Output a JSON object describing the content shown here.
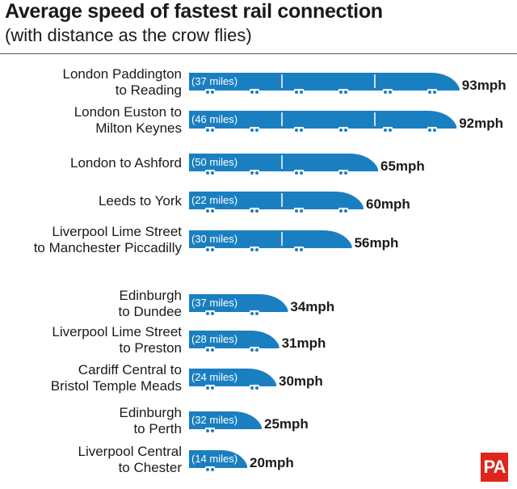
{
  "header": {
    "title": "Average speed of fastest rail connection",
    "subtitle": "(with distance as the crow flies)"
  },
  "logo_text": "PA",
  "colors": {
    "bar": "#1a7fc1",
    "text": "#1a1a1a",
    "logo": "#e0261c"
  },
  "chart_data": {
    "type": "bar",
    "orientation": "horizontal",
    "title": "Average speed of fastest rail connection",
    "subtitle": "(with distance as the crow flies)",
    "unit": "mph",
    "bar_style": "train-shaped",
    "grid": false,
    "legend": "none",
    "rows": [
      {
        "label_lines": [
          "London Paddington",
          "to Reading"
        ],
        "distance": "(37 miles)",
        "value": 93,
        "value_label": "93mph",
        "group": 1
      },
      {
        "label_lines": [
          "London Euston to",
          "Milton Keynes"
        ],
        "distance": "(46 miles)",
        "value": 92,
        "value_label": "92mph",
        "group": 1
      },
      {
        "label_lines": [
          "London to Ashford"
        ],
        "distance": "(50 miles)",
        "value": 65,
        "value_label": "65mph",
        "group": 1
      },
      {
        "label_lines": [
          "Leeds to York"
        ],
        "distance": "(22 miles)",
        "value": 60,
        "value_label": "60mph",
        "group": 1
      },
      {
        "label_lines": [
          "Liverpool Lime Street",
          "to Manchester Piccadilly"
        ],
        "distance": "(30 miles)",
        "value": 56,
        "value_label": "56mph",
        "group": 1
      },
      {
        "label_lines": [
          "Edinburgh",
          "to Dundee"
        ],
        "distance": "(37 miles)",
        "value": 34,
        "value_label": "34mph",
        "group": 2
      },
      {
        "label_lines": [
          "Liverpool Lime Street",
          "to Preston"
        ],
        "distance": "(28 miles)",
        "value": 31,
        "value_label": "31mph",
        "group": 2
      },
      {
        "label_lines": [
          "Cardiff Central to",
          "Bristol Temple Meads"
        ],
        "distance": "(24 miles)",
        "value": 30,
        "value_label": "30mph",
        "group": 2
      },
      {
        "label_lines": [
          "Edinburgh",
          "to Perth"
        ],
        "distance": "(32 miles)",
        "value": 25,
        "value_label": "25mph",
        "group": 2
      },
      {
        "label_lines": [
          "Liverpool Central",
          "to Chester"
        ],
        "distance": "(14 miles)",
        "value": 20,
        "value_label": "20mph",
        "group": 2
      }
    ]
  }
}
